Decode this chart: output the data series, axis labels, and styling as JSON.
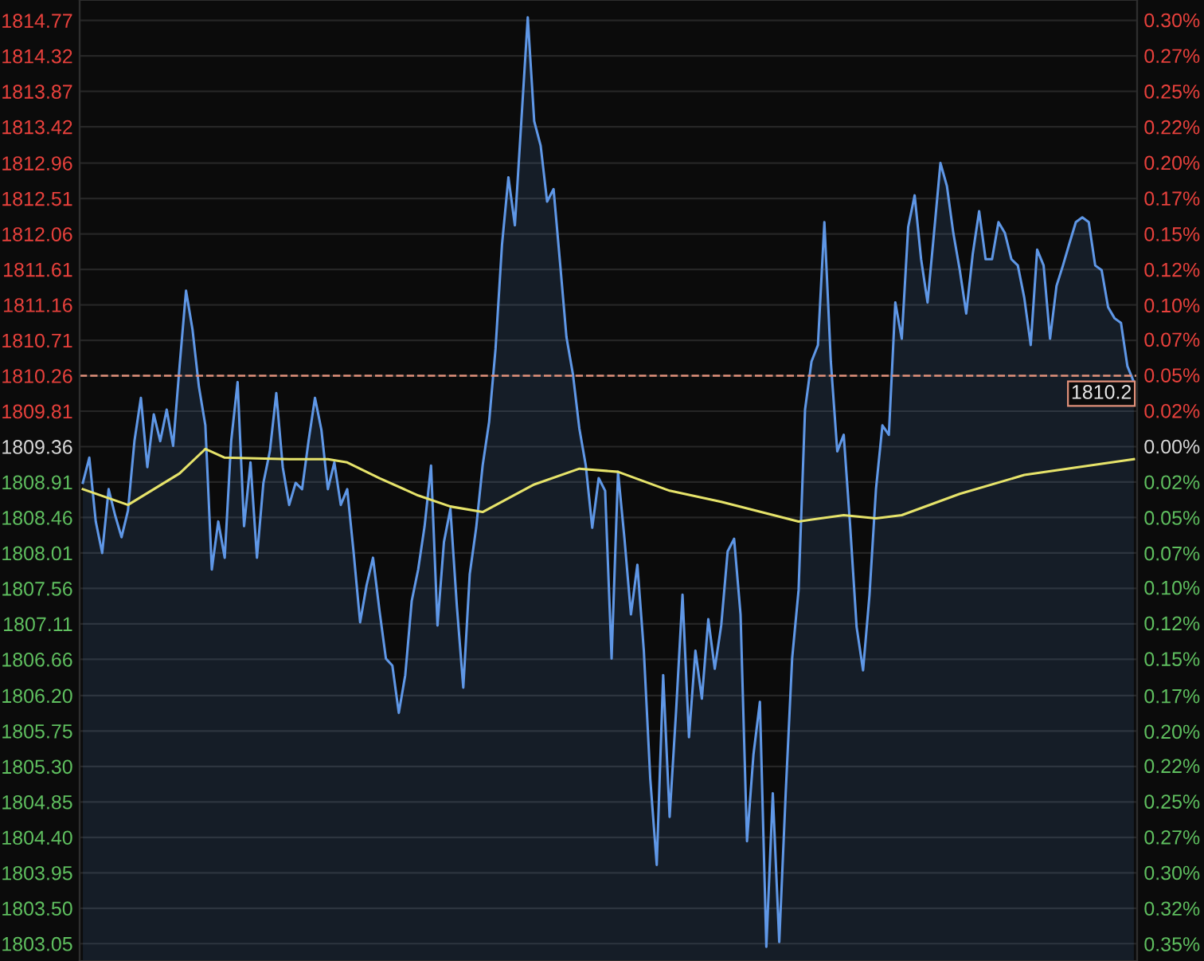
{
  "chart_data": {
    "type": "area",
    "legend": false,
    "grid": "y",
    "categories": [
      null,
      null,
      null,
      null,
      null,
      null,
      null,
      null,
      null,
      null,
      null,
      null,
      null,
      null,
      null,
      null,
      null,
      null,
      null,
      null,
      null,
      null,
      null,
      null,
      null,
      null,
      null,
      null,
      null,
      null,
      null,
      null,
      null,
      null,
      null,
      null,
      null,
      null,
      null,
      null,
      null,
      null,
      null,
      null,
      null,
      null,
      null,
      null,
      null,
      null,
      null,
      null,
      null,
      null,
      null,
      null,
      null,
      null,
      null,
      null,
      null,
      null,
      null,
      null,
      null,
      null,
      null,
      null,
      null,
      null,
      null,
      null,
      null,
      null,
      null,
      null,
      null,
      null,
      null,
      null,
      null,
      null,
      null,
      null,
      null,
      null,
      null,
      null,
      null,
      null,
      null,
      null,
      null,
      null,
      null,
      null,
      null,
      null,
      null,
      null,
      null,
      null,
      null,
      null,
      null,
      null,
      null,
      null,
      null,
      null,
      null,
      null,
      null,
      null,
      null,
      null,
      null,
      null,
      null,
      null,
      null,
      null,
      null,
      null,
      null,
      null,
      null,
      null,
      null,
      null,
      null,
      null,
      null,
      null,
      null,
      null,
      null,
      null,
      null,
      null,
      null,
      null,
      null,
      null,
      null,
      null,
      null,
      null,
      null,
      null,
      null,
      null,
      null,
      null,
      null,
      null,
      null,
      null,
      null,
      null,
      null,
      null,
      null,
      null
    ],
    "series": [
      {
        "color": "#5f97e6",
        "values": [
          1808.9,
          1809.22,
          1808.41,
          1808.01,
          1808.82,
          1808.49,
          1808.21,
          1808.55,
          1809.43,
          1809.98,
          1809.1,
          1809.77,
          1809.43,
          1809.83,
          1809.37,
          1810.38,
          1811.34,
          1810.85,
          1810.12,
          1809.63,
          1807.8,
          1808.41,
          1807.95,
          1809.43,
          1810.18,
          1808.35,
          1809.16,
          1807.95,
          1808.9,
          1809.3,
          1810.04,
          1809.1,
          1808.62,
          1808.9,
          1808.82,
          1809.43,
          1809.98,
          1809.57,
          1808.82,
          1809.16,
          1808.62,
          1808.82,
          1808.01,
          1807.13,
          1807.6,
          1807.95,
          1807.28,
          1806.67,
          1806.58,
          1805.98,
          1806.46,
          1807.4,
          1807.8,
          1808.35,
          1809.12,
          1807.09,
          1808.15,
          1808.57,
          1807.34,
          1806.3,
          1807.74,
          1808.33,
          1809.12,
          1809.67,
          1810.6,
          1811.92,
          1812.78,
          1812.17,
          1813.49,
          1814.81,
          1813.49,
          1813.18,
          1812.47,
          1812.63,
          1811.7,
          1810.75,
          1810.28,
          1809.59,
          1809.12,
          1808.33,
          1808.96,
          1808.8,
          1806.67,
          1809.04,
          1808.19,
          1807.23,
          1807.86,
          1806.77,
          1805.14,
          1804.05,
          1806.46,
          1804.66,
          1806.0,
          1807.48,
          1805.67,
          1806.77,
          1806.16,
          1807.17,
          1806.54,
          1807.09,
          1808.03,
          1808.19,
          1807.23,
          1804.35,
          1805.45,
          1806.12,
          1803.01,
          1804.96,
          1803.07,
          1804.96,
          1806.67,
          1807.54,
          1809.83,
          1810.44,
          1810.65,
          1812.21,
          1810.44,
          1809.3,
          1809.51,
          1808.35,
          1807.07,
          1806.52,
          1807.48,
          1808.82,
          1809.63,
          1809.51,
          1811.19,
          1810.73,
          1812.15,
          1812.55,
          1811.74,
          1811.19,
          1812.07,
          1812.96,
          1812.67,
          1812.07,
          1811.6,
          1811.05,
          1811.8,
          1812.35,
          1811.74,
          1811.74,
          1812.21,
          1812.07,
          1811.74,
          1811.66,
          1811.25,
          1810.65,
          1811.86,
          1811.66,
          1810.73,
          1811.4,
          1811.66,
          1811.94,
          1812.21,
          1812.27,
          1812.21,
          1811.66,
          1811.6,
          1811.13,
          1810.99,
          1810.93,
          1810.38,
          1810.18
        ]
      },
      {
        "type": "line",
        "color": "#e6e36a",
        "values": [
          1808.82,
          null,
          null,
          null,
          null,
          null,
          null,
          1808.62,
          null,
          null,
          null,
          null,
          null,
          null,
          null,
          1809.02,
          null,
          null,
          null,
          1809.33,
          null,
          null,
          1809.22,
          null,
          null,
          null,
          null,
          null,
          null,
          null,
          null,
          null,
          1809.2,
          null,
          null,
          null,
          null,
          null,
          1809.2,
          null,
          null,
          1809.16,
          null,
          null,
          null,
          null,
          1808.96,
          null,
          null,
          null,
          null,
          null,
          1808.74,
          null,
          null,
          null,
          null,
          1808.6,
          null,
          null,
          null,
          null,
          1808.53,
          null,
          null,
          null,
          null,
          null,
          null,
          null,
          1808.88,
          null,
          null,
          null,
          null,
          null,
          null,
          1809.08,
          null,
          null,
          null,
          null,
          null,
          1809.04,
          null,
          null,
          null,
          null,
          null,
          null,
          null,
          1808.8,
          null,
          null,
          null,
          null,
          null,
          null,
          null,
          1808.66,
          null,
          null,
          null,
          null,
          null,
          null,
          null,
          null,
          null,
          null,
          null,
          1808.41,
          null,
          null,
          null,
          null,
          null,
          null,
          1808.49,
          null,
          null,
          null,
          null,
          1808.45,
          null,
          null,
          null,
          1808.49,
          null,
          null,
          null,
          null,
          null,
          null,
          null,
          null,
          1808.76,
          null,
          null,
          null,
          null,
          null,
          null,
          null,
          null,
          null,
          1809.0,
          null,
          null,
          null,
          null,
          null,
          null,
          null,
          null,
          null,
          null,
          null,
          null,
          null,
          null,
          null,
          null,
          1809.2
        ]
      }
    ],
    "ylim": [
      1802.83,
      1815.03
    ],
    "yticks": [
      1803.05,
      {
        "value": 1803.5,
        "label": "1803.50"
      },
      1803.95,
      {
        "value": 1804.4,
        "label": "1804.40"
      },
      1804.85,
      {
        "value": 1805.3,
        "label": "1805.30"
      },
      1805.75,
      {
        "value": 1806.2,
        "label": "1806.20"
      },
      1806.66,
      1807.11,
      1807.56,
      1808.01,
      1808.46,
      1808.91,
      1809.36,
      1809.81,
      1810.26,
      1810.71,
      1811.16,
      1811.61,
      1812.06,
      1812.51,
      1812.96,
      1813.42,
      1813.87,
      1814.32,
      1814.77
    ],
    "y2lim": [
      -0.361,
      0.313
    ],
    "y2ticks": [
      {
        "value": -0.349,
        "label": "0.35%"
      },
      {
        "value": -0.324,
        "label": "0.32%"
      },
      {
        "value": -0.299,
        "label": "0.30%"
      },
      {
        "value": -0.274,
        "label": "0.27%"
      },
      {
        "value": -0.249,
        "label": "0.25%"
      },
      {
        "value": -0.224,
        "label": "0.22%"
      },
      {
        "value": -0.2,
        "label": "0.20%"
      },
      {
        "value": -0.175,
        "label": "0.17%"
      },
      {
        "value": -0.149,
        "label": "0.15%"
      },
      {
        "value": -0.124,
        "label": "0.12%"
      },
      {
        "value": -0.099,
        "label": "0.10%"
      },
      {
        "value": -0.075,
        "label": "0.07%"
      },
      {
        "value": -0.05,
        "label": "0.05%"
      },
      {
        "value": -0.025,
        "label": "0.02%"
      },
      {
        "value": 0,
        "label": "0.00%"
      },
      {
        "value": 0.025,
        "label": "0.02%"
      },
      {
        "value": 0.05,
        "label": "0.05%"
      },
      {
        "value": 0.075,
        "label": "0.07%"
      },
      {
        "value": 0.099,
        "label": "0.10%"
      },
      {
        "value": 0.124,
        "label": "0.12%"
      },
      {
        "value": 0.149,
        "label": "0.15%"
      },
      {
        "value": 0.174,
        "label": "0.17%"
      },
      {
        "value": 0.199,
        "label": "0.20%"
      },
      {
        "value": 0.224,
        "label": "0.22%"
      },
      {
        "value": 0.249,
        "label": "0.25%"
      },
      {
        "value": 0.274,
        "label": "0.27%"
      },
      {
        "value": 0.299,
        "label": "0.30%"
      }
    ],
    "ref_lines": [
      {
        "axis": "y",
        "value": 1810.26,
        "color": "#e0907a",
        "line_style": "dashed"
      }
    ],
    "annotations": [
      "1810.2"
    ]
  }
}
